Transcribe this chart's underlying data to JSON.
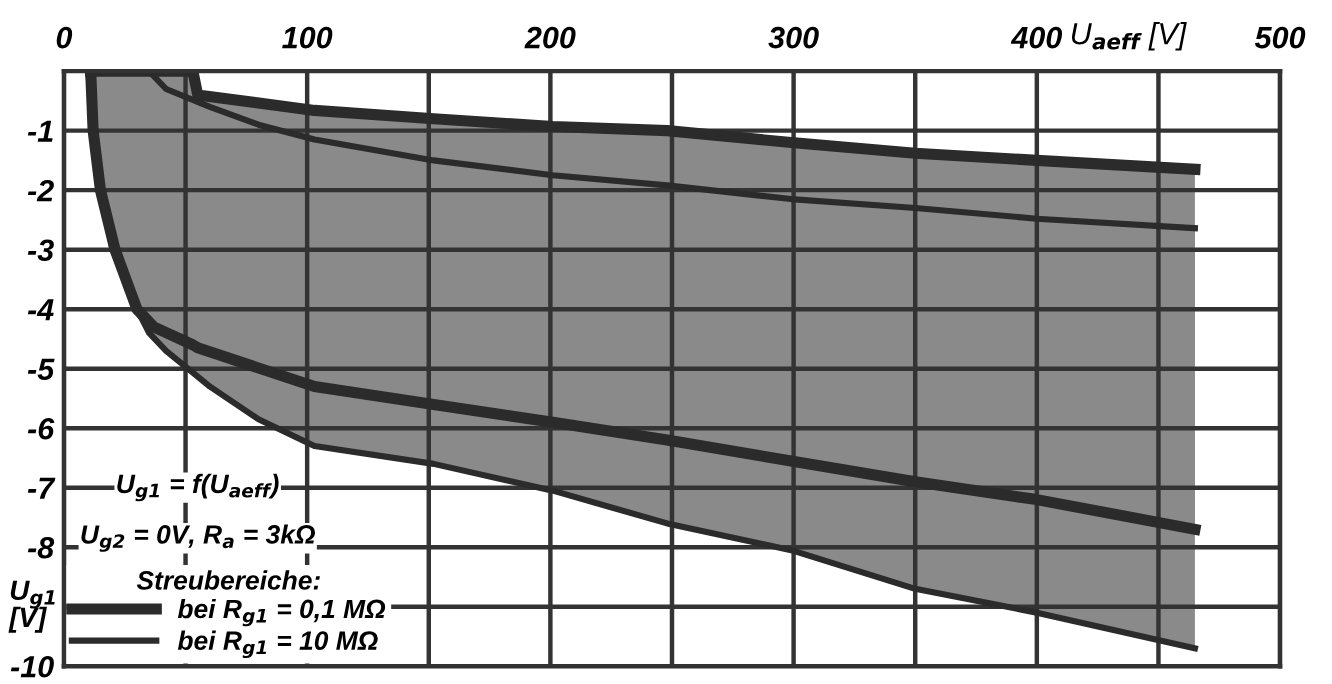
{
  "chart_data": {
    "type": "line",
    "xlabel": "U$_{aeff}$ [V]",
    "ylabel": "U$_{g1}$ [V]",
    "legend_title": "Streubereiche:",
    "annotations": [
      "U$_{g1}$ = f(U$_{aeff}$)",
      "U$_{g2}$ = 0V, R$_{a}$ = 3kΩ"
    ],
    "xlim": [
      0,
      500
    ],
    "ylim": [
      -10,
      0
    ],
    "xticks": [
      0,
      {
        "value": 50,
        "label": null
      },
      100,
      {
        "value": 150,
        "label": null
      },
      200,
      {
        "value": 250,
        "label": null
      },
      300,
      {
        "value": 350,
        "label": null
      },
      400,
      {
        "value": 450,
        "label": null
      },
      500
    ],
    "yticks": [
      -1,
      -2,
      -3,
      -4,
      -5,
      -6,
      -7,
      -8,
      {
        "value": -9,
        "label": null
      },
      -10
    ],
    "grid": true,
    "legend": "bottom left",
    "line_style": "solid",
    "series": [
      {
        "name": "bei R$_{g1}$ = 0,1 MΩ",
        "color": "#2b2b2b",
        "x": [
          11,
          12,
          15,
          21,
          30,
          37,
          53,
          55,
          103,
          152,
          201,
          248,
          299,
          350,
          400,
          465
        ],
        "values": [
          0,
          0,
          0,
          0,
          0,
          0,
          0,
          -0.4,
          -0.66,
          -0.8,
          -0.93,
          -1.0,
          -1.2,
          -1.38,
          -1.5,
          -1.65
        ],
        "upper": [
          0,
          0,
          0,
          0,
          0,
          0,
          0,
          -0.4,
          -0.66,
          -0.8,
          -0.93,
          -1.0,
          -1.2,
          -1.38,
          -1.5,
          -1.65
        ],
        "lower": [
          0,
          -1,
          -2,
          -3,
          -4,
          -4.3,
          -4.6,
          -4.65,
          -5.3,
          -5.6,
          -5.9,
          -6.2,
          -6.55,
          -6.9,
          -7.2,
          -7.7
        ]
      },
      {
        "name": "bei R$_{g1}$ = 10 MΩ",
        "color": "#2b2b2b",
        "x": [
          10,
          12,
          15,
          20,
          30,
          35,
          42,
          54,
          60,
          80,
          103,
          152,
          201,
          248,
          299,
          350,
          400,
          465
        ],
        "values": [
          0,
          0,
          0,
          0,
          0,
          0,
          -0.3,
          -0.5,
          -0.6,
          -0.9,
          -1.15,
          -1.5,
          -1.75,
          -1.92,
          -2.15,
          -2.3,
          -2.48,
          -2.64
        ],
        "upper": [
          0,
          0,
          0,
          0,
          0,
          0,
          -0.3,
          -0.5,
          -0.6,
          -0.9,
          -1.15,
          -1.5,
          -1.75,
          -1.92,
          -2.15,
          -2.3,
          -2.48,
          -2.64
        ],
        "lower": [
          0,
          -1,
          -2,
          -3,
          -4,
          -4.4,
          -4.7,
          -5.1,
          -5.3,
          -5.85,
          -6.3,
          -6.6,
          -7.05,
          -7.6,
          -8.05,
          -8.7,
          -9.1,
          -9.7
        ]
      },
      {
        "color": "#2b2b2b",
        "x": [
          11,
          12,
          15,
          21,
          30,
          37,
          53,
          55,
          103,
          152,
          201,
          248,
          299,
          350,
          400,
          465
        ],
        "values": [
          0,
          -1,
          -2,
          -3,
          -4,
          -4.3,
          -4.6,
          -4.65,
          -5.3,
          -5.6,
          -5.9,
          -6.2,
          -6.55,
          -6.9,
          -7.2,
          -7.7
        ]
      },
      {
        "color": "#2b2b2b",
        "x": [
          10,
          12,
          15,
          20,
          30,
          35,
          42,
          54,
          60,
          80,
          103,
          152,
          201,
          248,
          299,
          350,
          400,
          465
        ],
        "values": [
          0,
          -1,
          -2,
          -3,
          -4,
          -4.4,
          -4.7,
          -5.1,
          -5.3,
          -5.85,
          -6.3,
          -6.6,
          -7.05,
          -7.6,
          -8.05,
          -8.7,
          -9.1,
          -9.7
        ]
      }
    ]
  }
}
